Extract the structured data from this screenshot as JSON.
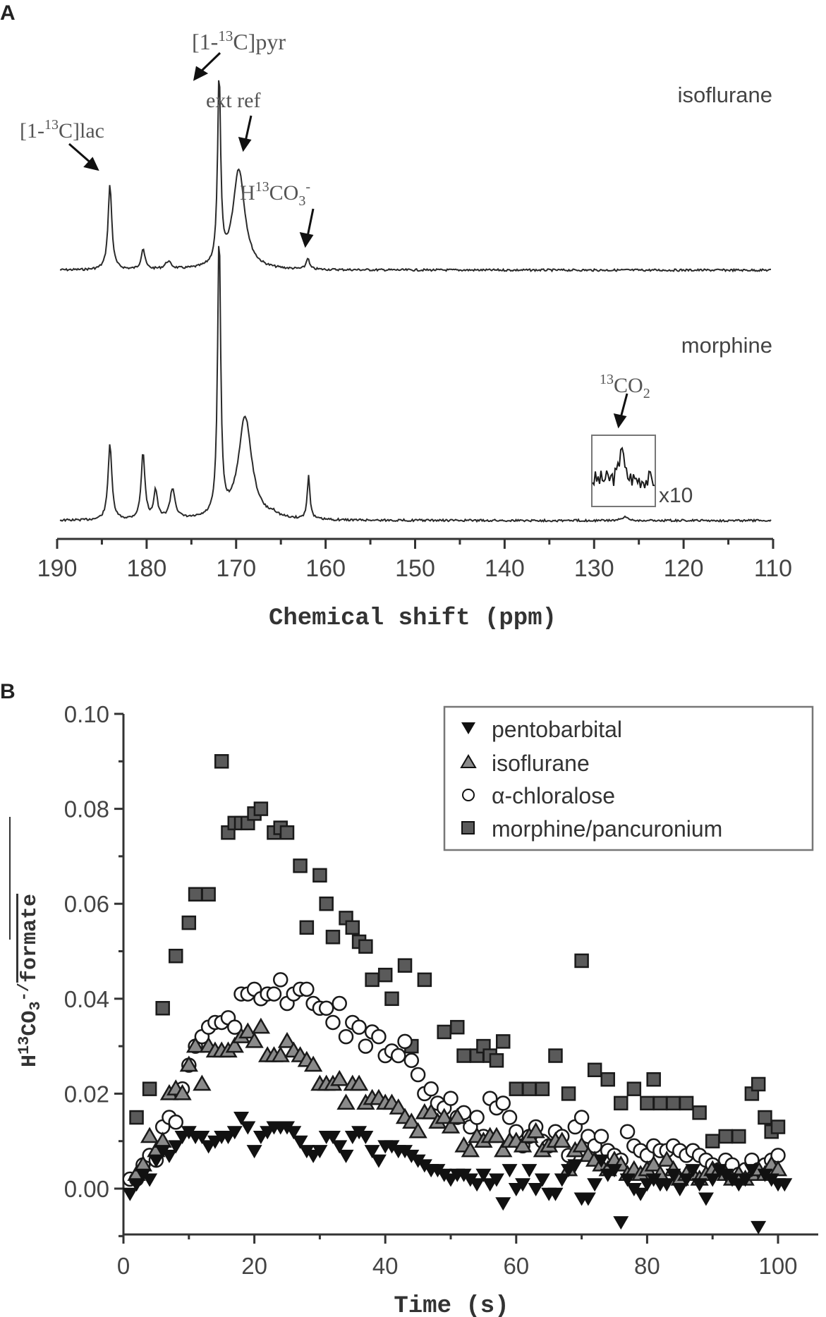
{
  "chart_data": [
    {
      "panel": "A",
      "type": "line",
      "title": "",
      "xlabel": "Chemical shift (ppm)",
      "ylabel": "",
      "xlim": [
        190,
        110
      ],
      "x_ticks": [
        190,
        180,
        170,
        160,
        150,
        140,
        130,
        120,
        110
      ],
      "grid": false,
      "series": [
        {
          "name": "isoflurane",
          "peaks": [
            {
              "ppm": 184.1,
              "height": 0.45,
              "width": 0.25,
              "label": "[1-13C]lac"
            },
            {
              "ppm": 180.4,
              "height": 0.11,
              "width": 0.25
            },
            {
              "ppm": 177.6,
              "height": 0.04,
              "width": 0.4
            },
            {
              "ppm": 171.9,
              "height": 1.0,
              "width": 0.2,
              "label": "[1-13C]pyr"
            },
            {
              "ppm": 169.7,
              "height": 0.53,
              "width": 0.8,
              "label": "ext ref"
            },
            {
              "ppm": 162.0,
              "height": 0.06,
              "width": 0.2,
              "label": "H13CO3-"
            }
          ]
        },
        {
          "name": "morphine",
          "peaks": [
            {
              "ppm": 184.1,
              "height": 0.46,
              "width": 0.25
            },
            {
              "ppm": 180.4,
              "height": 0.4,
              "width": 0.25
            },
            {
              "ppm": 179.0,
              "height": 0.17,
              "width": 0.25
            },
            {
              "ppm": 177.1,
              "height": 0.18,
              "width": 0.35
            },
            {
              "ppm": 171.9,
              "height": 1.7,
              "width": 0.2
            },
            {
              "ppm": 169.0,
              "height": 0.62,
              "width": 0.9
            },
            {
              "ppm": 165.8,
              "height": 0.02,
              "width": 0.5
            },
            {
              "ppm": 161.9,
              "height": 0.26,
              "width": 0.18
            },
            {
              "ppm": 126.5,
              "height": 0.02,
              "width": 0.4,
              "label": "13CO2"
            }
          ]
        }
      ],
      "annotations": [
        "[1-13C]pyr",
        "ext ref",
        "[1-13C]lac",
        "H13CO3-",
        "13CO2",
        "x10",
        "isoflurane",
        "morphine"
      ]
    },
    {
      "panel": "B",
      "type": "scatter",
      "title": "",
      "xlabel": "Time (s)",
      "ylabel": "H13CO3- / formate",
      "xlim": [
        0,
        107
      ],
      "ylim": [
        -0.01,
        0.1
      ],
      "x_ticks": [
        0,
        20,
        40,
        60,
        80,
        100
      ],
      "y_ticks": [
        0.0,
        0.02,
        0.04,
        0.06,
        0.08,
        0.1
      ],
      "grid": false,
      "legend_position": "upper right",
      "series": [
        {
          "name": "pentobarbital",
          "marker": "down-triangle-filled",
          "x": [
            1,
            2,
            3,
            4,
            5,
            6,
            7,
            8,
            9,
            10,
            11,
            12,
            13,
            14,
            15,
            16,
            17,
            18,
            19,
            20,
            21,
            22,
            23,
            24,
            25,
            26,
            27,
            28,
            29,
            30,
            31,
            32,
            33,
            34,
            35,
            36,
            37,
            38,
            39,
            40,
            41,
            42,
            43,
            44,
            45,
            46,
            47,
            48,
            49,
            50,
            51,
            52,
            53,
            54,
            55,
            56,
            57,
            58,
            59,
            60,
            61,
            62,
            63,
            64,
            65,
            66,
            67,
            68,
            69,
            70,
            71,
            72,
            73,
            74,
            75,
            76,
            77,
            78,
            79,
            80,
            81,
            82,
            83,
            84,
            85,
            86,
            87,
            88,
            89,
            90,
            91,
            92,
            93,
            94,
            95,
            96,
            97,
            98,
            99,
            100,
            101
          ],
          "y": [
            -0.001,
            0.001,
            0.003,
            0.002,
            0.006,
            0.008,
            0.007,
            0.009,
            0.011,
            0.012,
            0.011,
            0.011,
            0.009,
            0.01,
            0.011,
            0.011,
            0.012,
            0.015,
            0.013,
            0.008,
            0.011,
            0.012,
            0.013,
            0.013,
            0.013,
            0.012,
            0.01,
            0.008,
            0.007,
            0.008,
            0.011,
            0.011,
            0.009,
            0.007,
            0.011,
            0.012,
            0.011,
            0.008,
            0.006,
            0.009,
            0.009,
            0.008,
            0.008,
            0.007,
            0.006,
            0.005,
            0.004,
            0.004,
            0.003,
            0.002,
            0.003,
            0.003,
            0.002,
            0.001,
            0.003,
            0.001,
            0.002,
            -0.003,
            0.004,
            0.0,
            0.001,
            0.004,
            0.0,
            0.002,
            -0.001,
            -0.001,
            0.002,
            0.004,
            0.005,
            -0.002,
            -0.002,
            0.001,
            0.006,
            0.003,
            0.004,
            -0.007,
            0.002,
            0.0,
            -0.001,
            0.001,
            0.002,
            0.001,
            0.001,
            0.003,
            0.0,
            0.002,
            0.004,
            0.001,
            -0.002,
            0.002,
            0.004,
            0.003,
            0.002,
            0.001,
            0.002,
            0.004,
            -0.008,
            0.003,
            0.002,
            0.001,
            0.001
          ]
        },
        {
          "name": "isoflurane",
          "marker": "up-triangle-open-grey",
          "x": [
            2,
            3,
            4,
            5,
            6,
            7,
            8,
            9,
            10,
            11,
            12,
            13,
            14,
            15,
            16,
            17,
            18,
            19,
            20,
            21,
            22,
            23,
            24,
            25,
            26,
            27,
            28,
            29,
            30,
            31,
            32,
            33,
            34,
            35,
            36,
            37,
            38,
            39,
            40,
            41,
            42,
            43,
            44,
            45,
            46,
            47,
            48,
            49,
            50,
            51,
            52,
            53,
            54,
            55,
            56,
            57,
            58,
            59,
            60,
            61,
            62,
            63,
            64,
            65,
            66,
            67,
            68,
            69,
            70,
            71,
            72,
            73,
            74,
            75,
            76,
            77,
            78,
            79,
            80,
            81,
            82,
            83,
            84,
            85,
            86,
            87,
            88,
            89,
            90,
            91,
            92,
            93,
            94,
            95,
            96,
            97,
            98,
            99,
            100
          ],
          "y": [
            0.003,
            0.005,
            0.011,
            0.008,
            0.01,
            0.02,
            0.021,
            0.02,
            0.026,
            0.03,
            0.022,
            0.03,
            0.029,
            0.029,
            0.029,
            0.03,
            0.032,
            0.033,
            0.031,
            0.034,
            0.028,
            0.028,
            0.028,
            0.031,
            0.029,
            0.028,
            0.027,
            0.026,
            0.022,
            0.022,
            0.022,
            0.023,
            0.018,
            0.022,
            0.022,
            0.018,
            0.019,
            0.019,
            0.018,
            0.018,
            0.017,
            0.015,
            0.014,
            0.012,
            0.016,
            0.016,
            0.014,
            0.015,
            0.013,
            0.015,
            0.009,
            0.008,
            0.011,
            0.01,
            0.011,
            0.011,
            0.008,
            0.01,
            0.01,
            0.009,
            0.011,
            0.012,
            0.008,
            0.009,
            0.01,
            0.01,
            0.004,
            0.008,
            0.009,
            0.007,
            0.006,
            0.005,
            0.004,
            0.006,
            0.005,
            0.003,
            0.004,
            0.003,
            0.004,
            0.005,
            0.003,
            0.006,
            0.004,
            0.002,
            0.003,
            0.003,
            0.002,
            0.003,
            0.004,
            0.004,
            0.003,
            0.002,
            0.003,
            0.002,
            0.003,
            0.004,
            0.003,
            0.005,
            0.004
          ]
        },
        {
          "name": "α-chloralose",
          "marker": "circle-open",
          "x": [
            1,
            2,
            3,
            4,
            5,
            6,
            7,
            8,
            9,
            10,
            11,
            12,
            13,
            14,
            15,
            16,
            17,
            18,
            19,
            20,
            21,
            22,
            23,
            24,
            25,
            26,
            27,
            28,
            29,
            30,
            31,
            32,
            33,
            34,
            35,
            36,
            37,
            38,
            39,
            40,
            41,
            42,
            43,
            44,
            45,
            46,
            47,
            48,
            49,
            50,
            51,
            52,
            53,
            54,
            55,
            56,
            57,
            58,
            59,
            60,
            61,
            62,
            63,
            64,
            65,
            66,
            67,
            68,
            69,
            70,
            71,
            72,
            73,
            74,
            75,
            76,
            77,
            78,
            79,
            80,
            81,
            82,
            83,
            84,
            85,
            86,
            87,
            88,
            89,
            90,
            91,
            92,
            93,
            94,
            95,
            96,
            97,
            98,
            99,
            100
          ],
          "y": [
            0.002,
            0.002,
            0.005,
            0.007,
            0.006,
            0.013,
            0.015,
            0.014,
            0.021,
            0.026,
            0.03,
            0.032,
            0.034,
            0.035,
            0.035,
            0.036,
            0.034,
            0.041,
            0.041,
            0.042,
            0.04,
            0.041,
            0.041,
            0.044,
            0.039,
            0.041,
            0.042,
            0.042,
            0.039,
            0.038,
            0.038,
            0.035,
            0.039,
            0.032,
            0.035,
            0.034,
            0.03,
            0.033,
            0.032,
            0.028,
            0.029,
            0.028,
            0.031,
            0.027,
            0.024,
            0.02,
            0.021,
            0.018,
            0.017,
            0.019,
            0.015,
            0.016,
            0.013,
            0.015,
            0.011,
            0.019,
            0.017,
            0.018,
            0.015,
            0.012,
            0.009,
            0.011,
            0.013,
            0.01,
            0.009,
            0.012,
            0.011,
            0.007,
            0.013,
            0.015,
            0.011,
            0.009,
            0.011,
            0.008,
            0.007,
            0.006,
            0.012,
            0.009,
            0.008,
            0.007,
            0.009,
            0.008,
            0.008,
            0.009,
            0.008,
            0.007,
            0.008,
            0.007,
            0.006,
            0.005,
            0.004,
            0.006,
            0.005,
            0.003,
            0.004,
            0.006,
            0.004,
            0.005,
            0.006,
            0.007
          ]
        },
        {
          "name": "morphine/pancuronium",
          "marker": "square-filled-grey",
          "x": [
            2,
            4,
            6,
            8,
            10,
            11,
            13,
            15,
            16,
            17,
            18,
            19,
            20,
            21,
            23,
            24,
            25,
            27,
            28,
            30,
            31,
            32,
            34,
            35,
            36,
            37,
            38,
            40,
            41,
            43,
            44,
            46,
            49,
            51,
            52,
            54,
            55,
            56,
            57,
            58,
            60,
            62,
            64,
            66,
            68,
            70,
            72,
            74,
            76,
            78,
            80,
            81,
            82,
            84,
            86,
            88,
            90,
            92,
            94,
            96,
            97,
            98,
            99,
            100
          ],
          "y": [
            0.015,
            0.021,
            0.038,
            0.049,
            0.056,
            0.062,
            0.062,
            0.09,
            0.075,
            0.077,
            0.077,
            0.077,
            0.079,
            0.08,
            0.075,
            0.076,
            0.075,
            0.068,
            0.055,
            0.066,
            0.06,
            0.053,
            0.057,
            0.055,
            0.052,
            0.051,
            0.044,
            0.045,
            0.04,
            0.047,
            0.03,
            0.044,
            0.033,
            0.034,
            0.028,
            0.028,
            0.03,
            0.028,
            0.027,
            0.031,
            0.021,
            0.021,
            0.021,
            0.028,
            0.02,
            0.048,
            0.025,
            0.023,
            0.018,
            0.021,
            0.018,
            0.023,
            0.018,
            0.018,
            0.018,
            0.016,
            0.01,
            0.011,
            0.011,
            0.02,
            0.022,
            0.015,
            0.012,
            0.013
          ]
        }
      ]
    }
  ],
  "panelA": {
    "panel_label": "A",
    "xlabel": "Chemical shift (ppm)",
    "x_ticks": [
      "190",
      "180",
      "170",
      "160",
      "150",
      "140",
      "130",
      "120",
      "110"
    ],
    "trace_labels": {
      "top": "isoflurane",
      "bottom": "morphine"
    },
    "annotations": {
      "pyr_pre": "[1-",
      "pyr_sup": "13",
      "pyr_post": "C]pyr",
      "lac_pre": "[1-",
      "lac_sup": "13",
      "lac_post": "C]lac",
      "extref": "ext ref",
      "bic_pre": "H",
      "bic_sup": "13",
      "bic_mid": "CO",
      "bic_sub": "3",
      "bic_post": "-",
      "co2_sup": "13",
      "co2_mid": "CO",
      "co2_sub": "2",
      "x10": "x10"
    }
  },
  "panelB": {
    "panel_label": "B",
    "xlabel": "Time (s)",
    "ylabel_pre": "H",
    "ylabel_sup": "13",
    "ylabel_mid": "CO",
    "ylabel_sub": "3",
    "ylabel_post": "-/",
    "ylabel_over": "formate",
    "x_ticks": [
      "0",
      "20",
      "40",
      "60",
      "80",
      "100"
    ],
    "y_ticks": [
      "0.00",
      "0.02",
      "0.04",
      "0.06",
      "0.08",
      "0.10"
    ],
    "legend": [
      "pentobarbital",
      "isoflurane",
      "α-chloralose",
      "morphine/pancuronium"
    ]
  },
  "colors": {
    "ink": "#2a2a2a",
    "text": "#444444",
    "marker_grey": "#8a8a8a",
    "square_fill": "#5a5a5a"
  }
}
